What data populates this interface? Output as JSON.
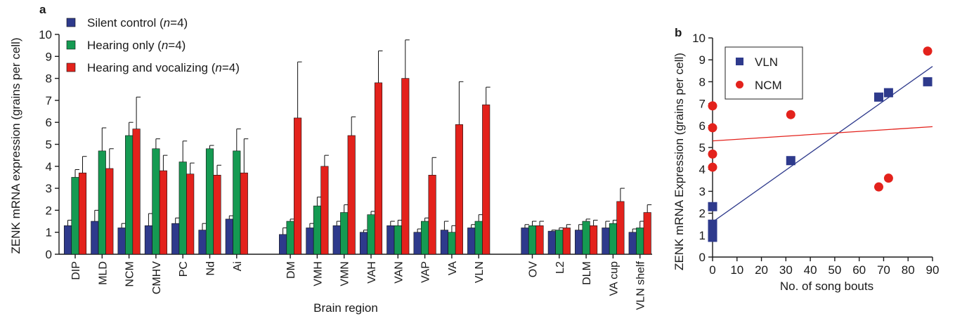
{
  "chart_data": [
    {
      "panel": "a",
      "type": "bar",
      "ylabel": "ZENK mRNA expression (grains per cell)",
      "xlabel": "Brain region",
      "ylim": [
        0,
        10
      ],
      "yticks": [
        0,
        1,
        2,
        3,
        4,
        5,
        6,
        7,
        8,
        9,
        10
      ],
      "grid": false,
      "legend_position": "top-left",
      "groups": [
        [
          "DIP",
          "MLD",
          "NCM",
          "CMHV",
          "PC",
          "Nd",
          "Ai"
        ],
        [
          "DM",
          "VMH",
          "VMN",
          "VAH",
          "VAN",
          "VAP",
          "VA",
          "VLN"
        ],
        [
          "OV",
          "L2",
          "DLM",
          "VA cup",
          "VLN shelf"
        ]
      ],
      "categories": [
        "DIP",
        "MLD",
        "NCM",
        "CMHV",
        "PC",
        "Nd",
        "Ai",
        "DM",
        "VMH",
        "VMN",
        "VAH",
        "VAN",
        "VAP",
        "VA",
        "VLN",
        "OV",
        "L2",
        "DLM",
        "VA cup",
        "VLN shelf"
      ],
      "series": [
        {
          "name": "Silent control",
          "n_text": "n",
          "n_value": "=4",
          "color": "#2e3a8c",
          "values": [
            1.3,
            1.5,
            1.2,
            1.3,
            1.4,
            1.1,
            1.6,
            0.9,
            1.2,
            1.3,
            1.0,
            1.3,
            1.0,
            1.1,
            1.2,
            1.2,
            1.05,
            1.1,
            1.2,
            1.0
          ],
          "errors": [
            0.25,
            0.5,
            0.2,
            0.55,
            0.25,
            0.3,
            0.15,
            0.3,
            0.2,
            0.2,
            0.1,
            0.2,
            0.15,
            0.4,
            0.15,
            0.15,
            0.05,
            0.25,
            0.3,
            0.15
          ]
        },
        {
          "name": "Hearing only",
          "n_text": "n",
          "n_value": "=4",
          "color": "#159a52",
          "values": [
            3.5,
            4.7,
            5.4,
            4.8,
            4.2,
            4.8,
            4.7,
            1.5,
            2.2,
            1.9,
            1.8,
            1.3,
            1.5,
            1.0,
            1.5,
            1.3,
            1.1,
            1.5,
            1.4,
            1.2
          ],
          "errors": [
            0.35,
            1.05,
            0.6,
            0.45,
            0.95,
            0.15,
            1.0,
            0.1,
            0.4,
            0.35,
            0.15,
            0.25,
            0.15,
            0.3,
            0.3,
            0.2,
            0.1,
            0.1,
            0.15,
            0.3
          ]
        },
        {
          "name": "Hearing and vocalizing",
          "n_text": "n",
          "n_value": "=4",
          "color": "#e3221c",
          "values": [
            3.7,
            3.9,
            5.7,
            3.8,
            3.65,
            3.6,
            3.7,
            6.2,
            4.0,
            5.4,
            7.8,
            8.0,
            3.6,
            5.9,
            6.8,
            1.3,
            1.2,
            1.3,
            2.4,
            1.9
          ],
          "errors": [
            0.75,
            0.9,
            1.45,
            0.7,
            0.5,
            0.45,
            1.55,
            2.55,
            0.5,
            0.85,
            1.45,
            1.75,
            0.8,
            1.95,
            0.8,
            0.2,
            0.15,
            0.25,
            0.6,
            0.35
          ]
        }
      ]
    },
    {
      "panel": "b",
      "type": "scatter",
      "ylabel": "ZENK mRNA Expression (grains per cell)",
      "xlabel": "No. of song bouts",
      "xlim": [
        0,
        90
      ],
      "ylim": [
        0,
        10
      ],
      "xticks": [
        0,
        10,
        20,
        30,
        40,
        50,
        60,
        70,
        80,
        90
      ],
      "yticks": [
        0,
        1,
        2,
        3,
        4,
        5,
        6,
        7,
        8,
        9,
        10
      ],
      "grid": false,
      "legend_position": "top-left",
      "series": [
        {
          "name": "VLN",
          "marker": "square",
          "color": "#2e3a8c",
          "points": [
            [
              0,
              0.9
            ],
            [
              0,
              1.1
            ],
            [
              0,
              1.3
            ],
            [
              0,
              1.5
            ],
            [
              0,
              2.3
            ],
            [
              32,
              4.4
            ],
            [
              68,
              7.3
            ],
            [
              72,
              7.5
            ],
            [
              88,
              8.0
            ]
          ],
          "fit": [
            [
              0,
              1.6
            ],
            [
              90,
              8.7
            ]
          ]
        },
        {
          "name": "NCM",
          "marker": "circle",
          "color": "#e3221c",
          "points": [
            [
              0,
              4.1
            ],
            [
              0,
              4.7
            ],
            [
              0,
              5.9
            ],
            [
              0,
              6.9
            ],
            [
              32,
              6.5
            ],
            [
              68,
              3.2
            ],
            [
              72,
              3.6
            ],
            [
              88,
              9.4
            ]
          ],
          "fit": [
            [
              0,
              5.3
            ],
            [
              90,
              5.95
            ]
          ]
        }
      ]
    }
  ]
}
